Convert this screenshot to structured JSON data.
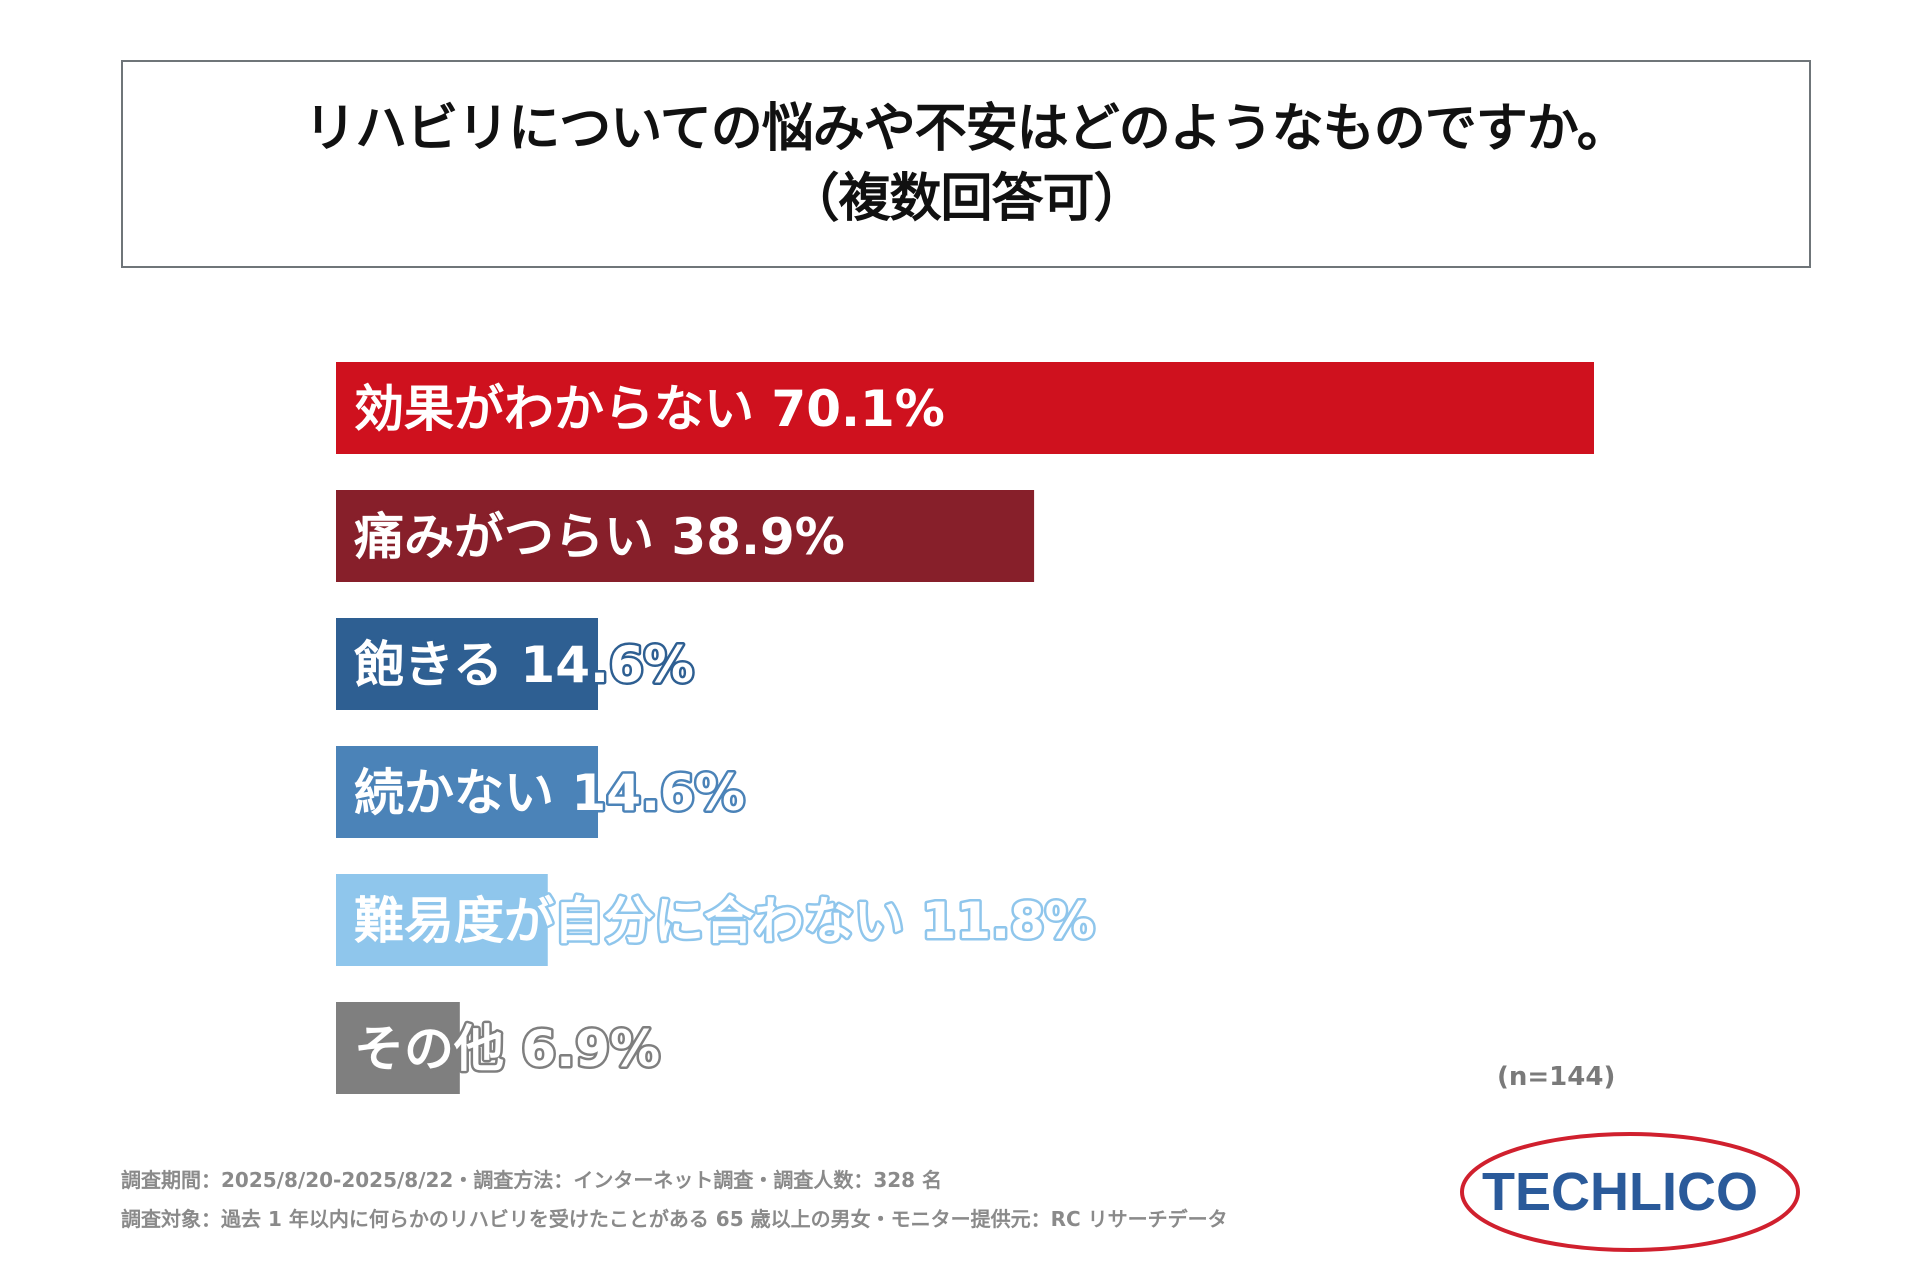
{
  "title": {
    "line1": "リハビリについての悩みや不安はどのようなものですか。",
    "line2": "（複数回答可）"
  },
  "chart_data": {
    "type": "bar",
    "orientation": "horizontal",
    "categories": [
      "効果がわからない",
      "痛みがつらい",
      "飽きる",
      "続かない",
      "難易度が自分に合わない",
      "その他"
    ],
    "values": [
      70.1,
      38.9,
      14.6,
      14.6,
      11.8,
      6.9
    ],
    "unit": "%",
    "bar_labels": [
      "効果がわからない 70.1%",
      "痛みがつらい 38.9%",
      "飽きる 14.6%",
      "続かない 14.6%",
      "難易度が自分に合わない 11.8%",
      "その他 6.9%"
    ],
    "colors": [
      "#cf111e",
      "#871f2a",
      "#2e5f92",
      "#4b83b8",
      "#8fc6ec",
      "#7f7f7f"
    ],
    "xlim": [
      0,
      70.1
    ],
    "grid": false,
    "legend": "none"
  },
  "sample_note": "(n=144)",
  "footer": {
    "line1": "調査期間：2025/8/20-2025/8/22・調査方法：インターネット調査・調査人数：328 名",
    "line2": "調査対象：過去 1 年以内に何らかのリハビリを受けたことがある 65 歳以上の男女・モニター提供元：RC リサーチデータ"
  },
  "logo": {
    "text": "TECHLICO",
    "text_color": "#2a5a9a",
    "ring_color": "#d0202e"
  }
}
